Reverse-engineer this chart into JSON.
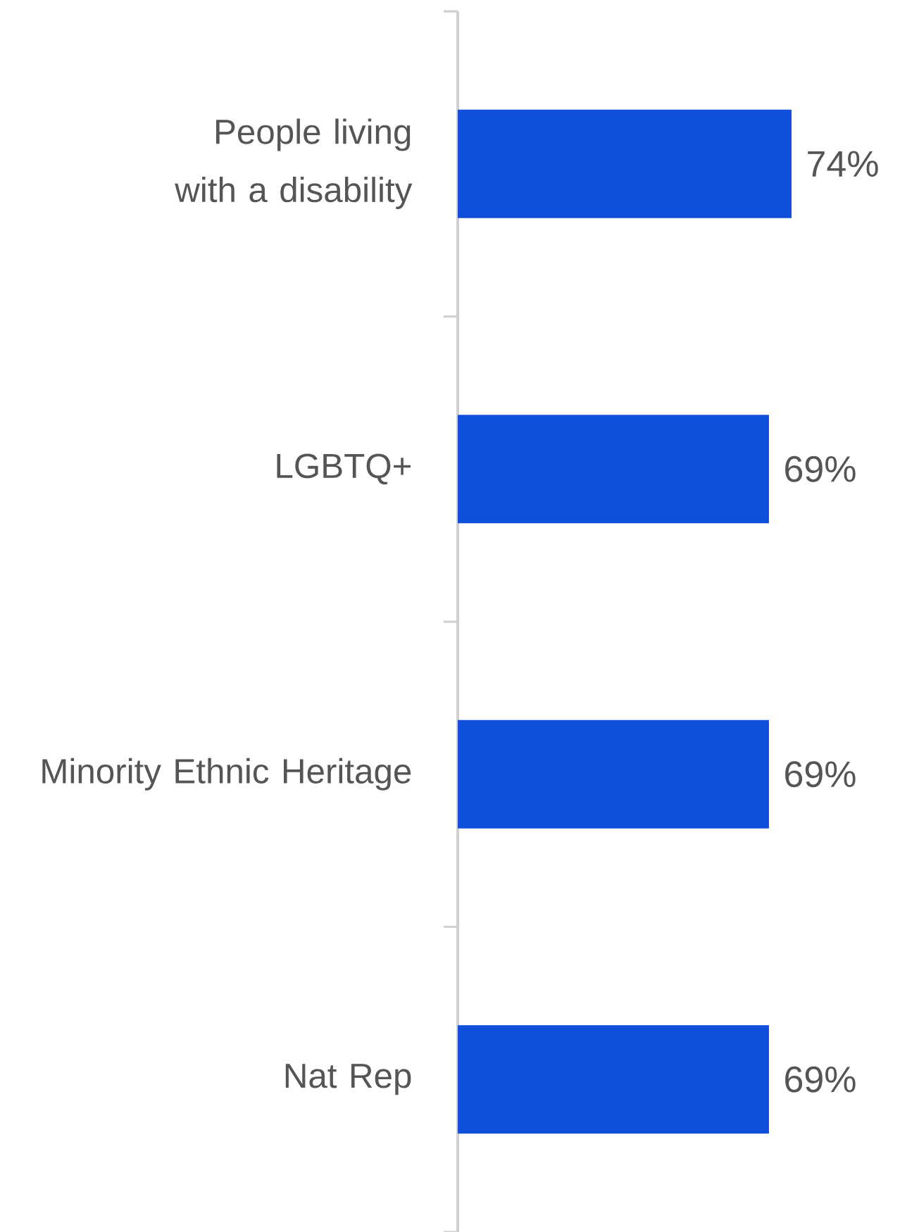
{
  "chart_data": {
    "type": "bar",
    "orientation": "horizontal",
    "categories": [
      "People living with a disability",
      "LGBTQ+",
      "Minority Ethnic Heritage",
      "Nat Rep"
    ],
    "values": [
      74,
      69,
      69,
      69
    ],
    "value_labels": [
      "74%",
      "69%",
      "69%",
      "69%"
    ],
    "color": "#0f4fd9"
  }
}
